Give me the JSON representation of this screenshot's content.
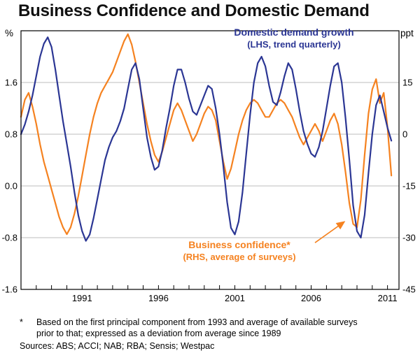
{
  "title": "Business Confidence and Domestic Demand",
  "units": {
    "left": "%",
    "right": "ppt"
  },
  "annotations": {
    "demand_label": "Domestic demand growth",
    "demand_sublabel": "(LHS, trend quarterly)",
    "confidence_label": "Business confidence*",
    "confidence_sublabel": "(RHS, average of surveys)"
  },
  "footnote": {
    "marker": "*",
    "text": "Based on the first principal component from 1993 and average of available surveys prior to that; expressed as a deviation from average since 1989",
    "sources": "Sources: ABS; ACCI; NAB; RBA; Sensis; Westpac"
  },
  "colors": {
    "demand_blue": "#2b3694",
    "confidence_orange": "#f58220",
    "grid": "#bdbdbd",
    "axis": "#000000"
  },
  "chart_data": {
    "type": "line",
    "title": "Business Confidence and Domestic Demand",
    "x_start": 1987.0,
    "x_step": 0.25,
    "x_axis": {
      "min": 1987.0,
      "max": 2011.75,
      "tick_labels": [
        "1991",
        "1996",
        "2001",
        "2006",
        "2011"
      ],
      "minor_tick_every_years": 1
    },
    "lhs_axis": {
      "unit": "%",
      "min": -1.6,
      "max": 2.4,
      "tick_labels": [
        "1.6",
        "0.8",
        "0.0",
        "-0.8",
        "-1.6"
      ],
      "gridlines": [
        1.6,
        0.8,
        0.0,
        -0.8
      ]
    },
    "rhs_axis": {
      "unit": "ppt",
      "min": -45,
      "max": 30,
      "tick_labels": [
        "15",
        "0",
        "-15",
        "-30",
        "-45"
      ]
    },
    "grid": true,
    "legend_position": "in-plot annotations",
    "series": [
      {
        "name": "Business confidence (RHS, average of surveys)",
        "id": "confidence-line",
        "axis": "rhs",
        "color": "#f58220",
        "values": [
          5,
          10,
          12,
          8,
          3,
          -3,
          -8,
          -12,
          -16,
          -20,
          -24,
          -27,
          -29,
          -27,
          -23,
          -18,
          -12,
          -6,
          0,
          5,
          9,
          12,
          14,
          16,
          18,
          21,
          24,
          27,
          29,
          26,
          21,
          15,
          9,
          3,
          -2,
          -6,
          -8,
          -5,
          -1,
          3,
          7,
          9,
          7,
          4,
          1,
          -2,
          0,
          3,
          6,
          8,
          7,
          4,
          -2,
          -8,
          -13,
          -10,
          -5,
          0,
          4,
          7,
          9,
          10,
          9,
          7,
          5,
          5,
          7,
          9,
          10,
          9,
          7,
          5,
          2,
          -1,
          -3,
          -1,
          1,
          3,
          1,
          -2,
          1,
          4,
          6,
          3,
          -3,
          -11,
          -20,
          -26,
          -27,
          -19,
          -6,
          6,
          13,
          16,
          9,
          12,
          2,
          -12
        ]
      },
      {
        "name": "Domestic demand growth (LHS, trend quarterly)",
        "id": "demand-line",
        "axis": "lhs",
        "color": "#2b3694",
        "values": [
          0.8,
          0.95,
          1.15,
          1.4,
          1.7,
          2.0,
          2.2,
          2.3,
          2.15,
          1.8,
          1.4,
          1.0,
          0.65,
          0.3,
          -0.1,
          -0.45,
          -0.7,
          -0.85,
          -0.75,
          -0.5,
          -0.2,
          0.1,
          0.4,
          0.6,
          0.75,
          0.85,
          1.0,
          1.2,
          1.5,
          1.8,
          1.9,
          1.65,
          1.2,
          0.75,
          0.45,
          0.25,
          0.3,
          0.55,
          0.9,
          1.2,
          1.55,
          1.8,
          1.8,
          1.6,
          1.35,
          1.15,
          1.1,
          1.25,
          1.4,
          1.55,
          1.5,
          1.2,
          0.8,
          0.3,
          -0.25,
          -0.65,
          -0.75,
          -0.55,
          -0.1,
          0.5,
          1.1,
          1.6,
          1.9,
          2.0,
          1.85,
          1.55,
          1.3,
          1.25,
          1.45,
          1.7,
          1.9,
          1.8,
          1.5,
          1.15,
          0.85,
          0.65,
          0.5,
          0.45,
          0.6,
          0.85,
          1.2,
          1.55,
          1.85,
          1.9,
          1.6,
          1.05,
          0.4,
          -0.3,
          -0.7,
          -0.8,
          -0.45,
          0.2,
          0.8,
          1.25,
          1.4,
          1.15,
          0.9,
          0.7
        ]
      }
    ]
  }
}
